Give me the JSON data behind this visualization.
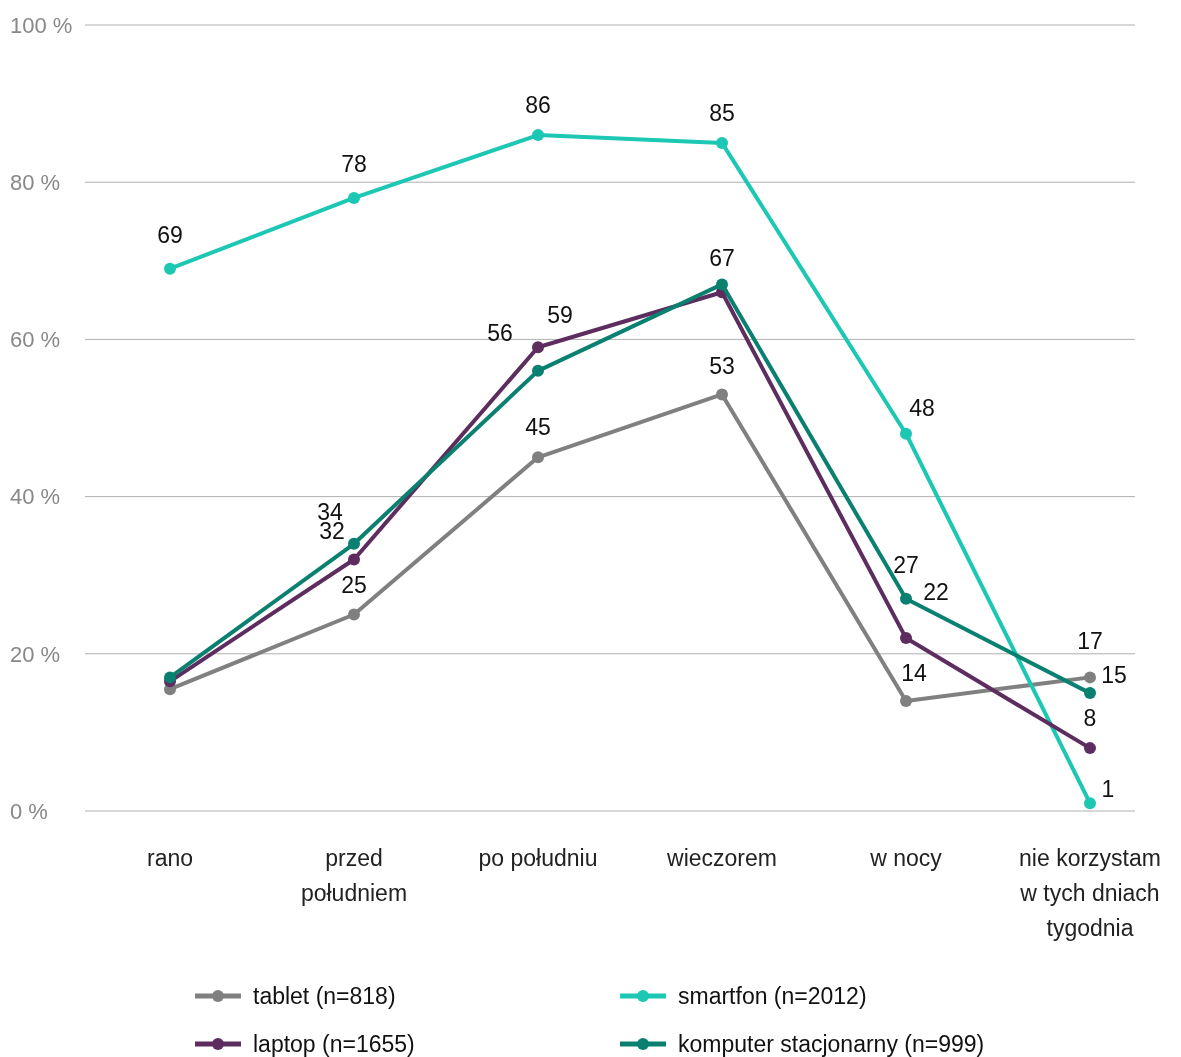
{
  "chart_data": {
    "type": "line",
    "categories": [
      "rano",
      "przed południem",
      "po południu",
      "wieczorem",
      "w nocy",
      "nie korzystam w tych dniach tygodnia"
    ],
    "ylim": [
      0,
      100
    ],
    "yticks": [
      {
        "value": 0,
        "label": "0 %"
      },
      {
        "value": 20,
        "label": "20 %"
      },
      {
        "value": 40,
        "label": "40 %"
      },
      {
        "value": 60,
        "label": "60 %"
      },
      {
        "value": 80,
        "label": "80 %"
      },
      {
        "value": 100,
        "label": "100 %"
      }
    ],
    "grid": "y",
    "legend": "bottom",
    "marker": "circle",
    "line_style": "solid",
    "series": [
      {
        "name": "tablet (n=818)",
        "color": "#808080",
        "values": [
          15.5,
          25,
          45,
          53,
          14,
          17
        ],
        "value_labels": [
          null,
          "25",
          "45",
          "53",
          "14",
          "17"
        ]
      },
      {
        "name": "smartfon (n=2012)",
        "color": "#1cc7b4",
        "values": [
          69,
          78,
          86,
          85,
          48,
          1
        ],
        "value_labels": [
          "69",
          "78",
          "86",
          "85",
          "48",
          "1"
        ]
      },
      {
        "name": "laptop (n=1655)",
        "color": "#5c2d5e",
        "values": [
          16.5,
          32,
          59,
          66,
          22,
          8
        ],
        "value_labels": [
          null,
          "32",
          "59",
          null,
          "22",
          "8"
        ]
      },
      {
        "name": "komputer stacjonarny (n=999)",
        "color": "#0a8070",
        "values": [
          17,
          34,
          56,
          67,
          27,
          15
        ],
        "value_labels": [
          null,
          "34",
          "56",
          "67",
          "27",
          "15"
        ]
      }
    ]
  }
}
